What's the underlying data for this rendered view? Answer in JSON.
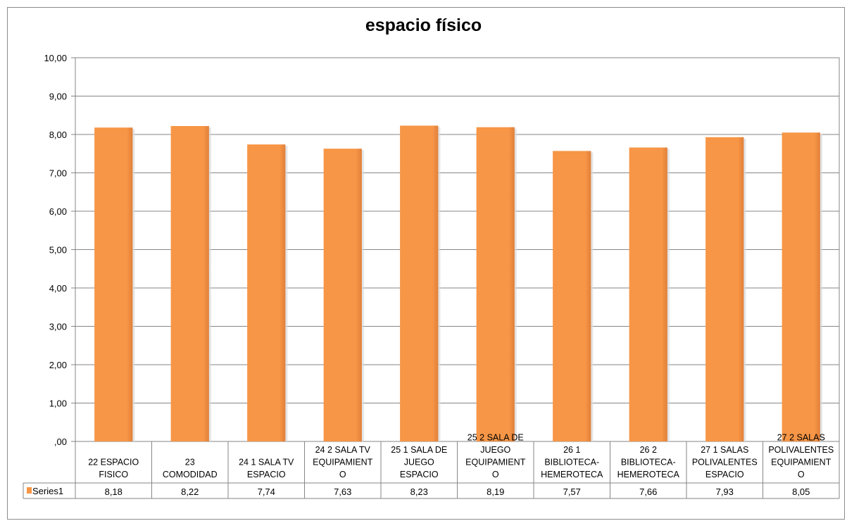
{
  "chart_data": {
    "type": "bar",
    "title": "espacio físico",
    "categories": [
      [
        "22 ESPACIO",
        "FISICO"
      ],
      [
        "23",
        "COMODIDAD"
      ],
      [
        "24 1 SALA TV",
        "ESPACIO"
      ],
      [
        "24 2 SALA TV",
        "EQUIPAMIENT",
        "O"
      ],
      [
        "25 1 SALA DE",
        "JUEGO",
        "ESPACIO"
      ],
      [
        "25 2 SALA DE",
        "JUEGO",
        "EQUIPAMIENT",
        "O"
      ],
      [
        "26 1",
        "BIBLIOTECA-",
        "HEMEROTECA"
      ],
      [
        "26 2",
        "BIBLIOTECA-",
        "HEMEROTECA"
      ],
      [
        "27 1 SALAS",
        "POLIVALENTES",
        "ESPACIO"
      ],
      [
        "27 2 SALAS",
        "POLIVALENTES",
        "EQUIPAMIENT",
        "O"
      ]
    ],
    "series": [
      {
        "name": "Series1",
        "values": [
          8.18,
          8.22,
          7.74,
          7.63,
          8.23,
          8.19,
          7.57,
          7.66,
          7.93,
          8.05
        ],
        "value_labels": [
          "8,18",
          "8,22",
          "7,74",
          "7,63",
          "8,23",
          "8,19",
          "7,57",
          "7,66",
          "7,93",
          "8,05"
        ],
        "color": "#F79646"
      }
    ],
    "ylim": [
      0,
      10
    ],
    "yticks": [
      ",00",
      "1,00",
      "2,00",
      "3,00",
      "4,00",
      "5,00",
      "6,00",
      "7,00",
      "8,00",
      "9,00",
      "10,00"
    ],
    "grid": true,
    "data_table": true
  }
}
